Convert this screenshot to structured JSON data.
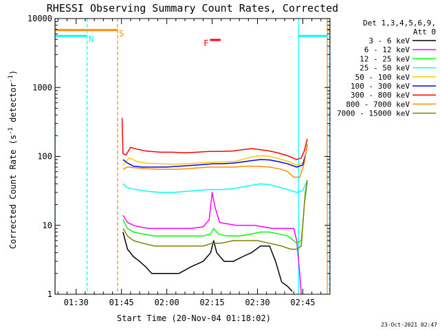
{
  "chart_data": {
    "type": "line",
    "title": "RHESSI Observing Summary Count Rates, Corrected",
    "xlabel": "Start Time (20-Nov-04 01:18:02)",
    "ylabel": "Corrected Count Rate (s⁻¹ detector⁻¹)",
    "ylabel_main": "Corrected Count Rate (s",
    "ylabel_sup1": "-1",
    "ylabel_mid": " detector",
    "ylabel_sup2": "-1",
    "ylabel_end": ")",
    "y_scale": "log",
    "ylim": [
      1,
      10000
    ],
    "xlim_minutes": [
      5,
      96
    ],
    "x_ticks": [
      {
        "label": "01:30",
        "min": 12
      },
      {
        "label": "01:45",
        "min": 27
      },
      {
        "label": "02:00",
        "min": 42
      },
      {
        "label": "02:15",
        "min": 57
      },
      {
        "label": "02:30",
        "min": 72
      },
      {
        "label": "02:45",
        "min": 87
      }
    ],
    "y_ticks": [
      {
        "label": "1",
        "value": 1
      },
      {
        "label": "10",
        "value": 10
      },
      {
        "label": "100",
        "value": 100
      },
      {
        "label": "1000",
        "value": 1000
      },
      {
        "label": "10000",
        "value": 10000
      }
    ],
    "legend": {
      "header1": "Det 1,3,4,5,6,9,",
      "header2": "Att 0",
      "placement": "right"
    },
    "timestamp": "23-Oct-2021 02:47",
    "series": [
      {
        "name": "3 - 6 keV",
        "color": "#000000",
        "points": [
          [
            27.5,
            8
          ],
          [
            29,
            4.5
          ],
          [
            31,
            3.5
          ],
          [
            33,
            3
          ],
          [
            35,
            2.5
          ],
          [
            37,
            2
          ],
          [
            42,
            2
          ],
          [
            46,
            2
          ],
          [
            50,
            2.5
          ],
          [
            54,
            3
          ],
          [
            56.5,
            4
          ],
          [
            57.5,
            6
          ],
          [
            58.5,
            4
          ],
          [
            61,
            3
          ],
          [
            64,
            3
          ],
          [
            67,
            3.5
          ],
          [
            70,
            4
          ],
          [
            73,
            5
          ],
          [
            76,
            5
          ],
          [
            78,
            3
          ],
          [
            80,
            1.5
          ],
          [
            82,
            1.3
          ],
          [
            83.5,
            1.1
          ]
        ]
      },
      {
        "name": "6 - 12 keV",
        "color": "#ff00ff",
        "points": [
          [
            27.5,
            14
          ],
          [
            29,
            11
          ],
          [
            31,
            10
          ],
          [
            33,
            9.5
          ],
          [
            36,
            9
          ],
          [
            40,
            9
          ],
          [
            45,
            9
          ],
          [
            50,
            9
          ],
          [
            54,
            9.5
          ],
          [
            56,
            12
          ],
          [
            57,
            30
          ],
          [
            58,
            18
          ],
          [
            59.5,
            11
          ],
          [
            62,
            10.5
          ],
          [
            65,
            10
          ],
          [
            68,
            10
          ],
          [
            71,
            10
          ],
          [
            74,
            9.5
          ],
          [
            77,
            9
          ],
          [
            80,
            9
          ],
          [
            82,
            9
          ],
          [
            84,
            9
          ],
          [
            85,
            6
          ],
          [
            86,
            2
          ],
          [
            86.5,
            1
          ]
        ]
      },
      {
        "name": "12 - 25 keV",
        "color": "#00ff00",
        "points": [
          [
            27.5,
            12
          ],
          [
            29,
            9
          ],
          [
            31,
            8
          ],
          [
            34,
            7.5
          ],
          [
            38,
            7
          ],
          [
            42,
            7
          ],
          [
            46,
            7
          ],
          [
            50,
            7
          ],
          [
            54,
            7
          ],
          [
            56.5,
            7.5
          ],
          [
            57.5,
            9
          ],
          [
            59,
            7.5
          ],
          [
            62,
            7
          ],
          [
            66,
            7
          ],
          [
            70,
            7.5
          ],
          [
            73,
            8
          ],
          [
            76,
            8
          ],
          [
            79,
            7.5
          ],
          [
            82,
            7
          ],
          [
            84,
            6
          ],
          [
            85,
            5.5
          ],
          [
            86.5,
            6
          ],
          [
            87,
            10
          ],
          [
            87.8,
            30
          ],
          [
            88.5,
            45
          ]
        ]
      },
      {
        "name": "25 - 50 keV",
        "color": "#00ffff",
        "points": [
          [
            27.5,
            40
          ],
          [
            29,
            35
          ],
          [
            32,
            33
          ],
          [
            36,
            31
          ],
          [
            40,
            30
          ],
          [
            44,
            30
          ],
          [
            48,
            31
          ],
          [
            52,
            32
          ],
          [
            56,
            33
          ],
          [
            60,
            33
          ],
          [
            64,
            34
          ],
          [
            67,
            36
          ],
          [
            70,
            38
          ],
          [
            73,
            40
          ],
          [
            76,
            39
          ],
          [
            79,
            36
          ],
          [
            82,
            33
          ],
          [
            85,
            30
          ],
          [
            87,
            32
          ],
          [
            88.5,
            45
          ]
        ]
      },
      {
        "name": "50 - 100 keV",
        "color": "#ffc800",
        "points": [
          [
            27.5,
            75
          ],
          [
            29.5,
            95
          ],
          [
            32,
            85
          ],
          [
            35,
            80
          ],
          [
            40,
            78
          ],
          [
            44,
            77
          ],
          [
            48,
            78
          ],
          [
            52,
            80
          ],
          [
            56,
            82
          ],
          [
            60,
            83
          ],
          [
            64,
            84
          ],
          [
            67,
            90
          ],
          [
            70,
            98
          ],
          [
            73,
            102
          ],
          [
            76,
            100
          ],
          [
            79,
            93
          ],
          [
            82,
            85
          ],
          [
            85,
            75
          ],
          [
            87,
            80
          ],
          [
            88,
            110
          ],
          [
            88.5,
            150
          ]
        ]
      },
      {
        "name": "100 - 300 keV",
        "color": "#0000ff",
        "points": [
          [
            27.5,
            90
          ],
          [
            29,
            80
          ],
          [
            31,
            72
          ],
          [
            34,
            70
          ],
          [
            38,
            70
          ],
          [
            42,
            70
          ],
          [
            46,
            72
          ],
          [
            50,
            74
          ],
          [
            54,
            76
          ],
          [
            57,
            78
          ],
          [
            60,
            78
          ],
          [
            64,
            80
          ],
          [
            67,
            83
          ],
          [
            70,
            87
          ],
          [
            73,
            90
          ],
          [
            76,
            89
          ],
          [
            79,
            84
          ],
          [
            82,
            78
          ],
          [
            85,
            70
          ],
          [
            87,
            75
          ],
          [
            88,
            110
          ],
          [
            88.5,
            150
          ]
        ]
      },
      {
        "name": "300 - 800 keV",
        "color": "#ff0000",
        "points": [
          [
            27.2,
            360
          ],
          [
            27.5,
            110
          ],
          [
            28.5,
            105
          ],
          [
            30,
            135
          ],
          [
            32,
            128
          ],
          [
            35,
            120
          ],
          [
            40,
            115
          ],
          [
            44,
            115
          ],
          [
            48,
            113
          ],
          [
            52,
            115
          ],
          [
            56,
            118
          ],
          [
            60,
            118
          ],
          [
            64,
            120
          ],
          [
            67,
            125
          ],
          [
            70,
            130
          ],
          [
            73,
            125
          ],
          [
            76,
            120
          ],
          [
            79,
            112
          ],
          [
            82,
            102
          ],
          [
            85,
            90
          ],
          [
            86.5,
            95
          ],
          [
            87.5,
            120
          ],
          [
            88.5,
            180
          ]
        ]
      },
      {
        "name": "800 - 7000 keV",
        "color": "#ff8c00",
        "points": [
          [
            27.5,
            65
          ],
          [
            29,
            70
          ],
          [
            32,
            68
          ],
          [
            36,
            66
          ],
          [
            40,
            65
          ],
          [
            44,
            65
          ],
          [
            48,
            66
          ],
          [
            52,
            68
          ],
          [
            56,
            70
          ],
          [
            60,
            70
          ],
          [
            64,
            70
          ],
          [
            68,
            72
          ],
          [
            72,
            72
          ],
          [
            76,
            70
          ],
          [
            80,
            65
          ],
          [
            82,
            60
          ],
          [
            84,
            50
          ],
          [
            86,
            50
          ],
          [
            87.5,
            80
          ],
          [
            88.5,
            150
          ]
        ]
      },
      {
        "name": "7000 - 15000 keV",
        "color": "#808000",
        "points": [
          [
            27.5,
            9
          ],
          [
            29,
            7
          ],
          [
            31,
            6
          ],
          [
            34,
            5.5
          ],
          [
            38,
            5
          ],
          [
            42,
            5
          ],
          [
            46,
            5
          ],
          [
            50,
            5
          ],
          [
            54,
            5
          ],
          [
            57,
            5.5
          ],
          [
            60,
            5.5
          ],
          [
            64,
            6
          ],
          [
            68,
            6
          ],
          [
            72,
            6
          ],
          [
            76,
            5.5
          ],
          [
            80,
            5
          ],
          [
            83,
            4.5
          ],
          [
            85,
            4.5
          ],
          [
            86.5,
            5
          ],
          [
            87.5,
            20
          ],
          [
            88.5,
            45
          ]
        ]
      }
    ],
    "annotations": [
      {
        "label": "S",
        "color": "#ff8c00",
        "x_min": 27,
        "y_value": 6800,
        "bar_from": 5,
        "bar_to": 25.7,
        "bar_from2": 95.2,
        "bar_to2": 96
      },
      {
        "label": "N",
        "color": "#00ffff",
        "x_min": 17,
        "y_value": 5600,
        "bar_from": 5,
        "bar_to": 15.6,
        "bar_from2": 85.5,
        "bar_to2": 95
      },
      {
        "label": "F",
        "color": "#ff0000",
        "x_min": 55,
        "y_value": 4900,
        "bar_from": 56.3,
        "bar_to": 59.8
      }
    ],
    "vertical_lines": [
      {
        "color": "#00ffff",
        "style": "solid",
        "x_min": 5.1
      },
      {
        "color": "#00ffff",
        "style": "dashed",
        "x_min": 15.6
      },
      {
        "color": "#ff8c00",
        "style": "dashed",
        "x_min": 25.7
      },
      {
        "color": "#00ffff",
        "style": "solid",
        "x_min": 85.6
      },
      {
        "color": "#ff8c00",
        "style": "solid",
        "x_min": 95.1
      },
      {
        "color": "#00ffff",
        "style": "dashed",
        "x_min": 95.8
      }
    ]
  }
}
